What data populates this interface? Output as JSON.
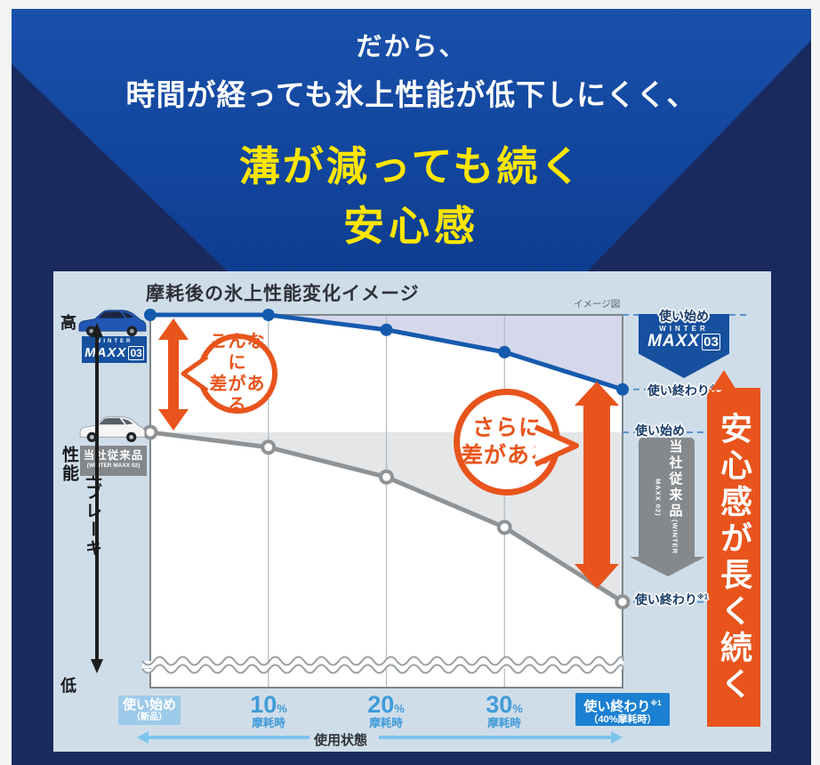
{
  "header": {
    "line1": "だから、",
    "line2": "時間が経っても氷上性能が低下しにくく、",
    "line3": "溝が減っても続く",
    "line4": "安心感"
  },
  "panel": {
    "title": "摩耗後の氷上性能変化イメージ",
    "note": "イメージ図",
    "y_axis": {
      "high": "高",
      "label": "氷上ブレーキ性能",
      "low": "低"
    },
    "x_axis": {
      "state_label": "使用状態"
    },
    "x_ticks": [
      {
        "line1": "使い始め",
        "line2": "（新品）"
      },
      {
        "num": "10",
        "pct": "%",
        "sub": "摩耗時"
      },
      {
        "num": "20",
        "pct": "%",
        "sub": "摩耗時"
      },
      {
        "num": "30",
        "pct": "%",
        "sub": "摩耗時"
      },
      {
        "line1": "使い終わり",
        "sup": "※1",
        "line2": "（40%摩耗時）"
      }
    ],
    "legend": {
      "maxx03": {
        "brand_top": "WINTER",
        "brand_main": "MAXX",
        "brand_num": "03"
      },
      "conventional": {
        "name": "当社従来品",
        "sub": "(WINTER MAXX 02)"
      }
    },
    "callouts": {
      "left_line1": "こんなに",
      "left_line2": "差がある",
      "right_line1": "さらに",
      "right_line2": "差がある"
    },
    "right_labels": {
      "blue_start": "使い始め",
      "blue_end": "使い終わり",
      "blue_end_sup": "※1",
      "gray_start": "使い始め",
      "gray_end": "使い終わり",
      "gray_end_sup": "※1"
    },
    "side_banner": "安心感が長く続く"
  },
  "chart_data": {
    "type": "line",
    "title": "摩耗後の氷上性能変化イメージ",
    "note": "イメージ図",
    "x_categories": [
      "使い始め（新品）",
      "10%摩耗時",
      "20%摩耗時",
      "30%摩耗時",
      "使い終わり※1（40%摩耗時）"
    ],
    "xlabel": "使用状態",
    "ylabel": "氷上ブレーキ性能（低←→高）",
    "ylim": [
      0,
      100
    ],
    "grid": "vertical",
    "axis_break_near_bottom": true,
    "series": [
      {
        "name": "WINTER MAXX 03",
        "color": "#155aad",
        "fill": "#d5d8ec",
        "marker": "filled",
        "values": [
          100,
          100,
          96,
          90,
          80
        ]
      },
      {
        "name": "当社従来品（WINTER MAXX 02）",
        "color": "#8f9396",
        "fill": "#e4e6e8",
        "marker": "open",
        "values": [
          68.5,
          64.5,
          56.5,
          43,
          23
        ]
      }
    ],
    "annotations": [
      "こんなに差がある",
      "さらに差がある",
      "安心感が長く続く"
    ]
  }
}
